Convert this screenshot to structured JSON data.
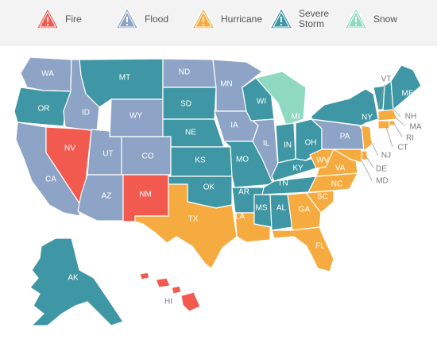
{
  "colors": {
    "fire": "#f25a4f",
    "flood": "#8ea4c6",
    "hurricane": "#f5ab3f",
    "severe_storm": "#3f97a5",
    "snow": "#8ed9bf"
  },
  "legend": [
    {
      "key": "fire",
      "label": "Fire",
      "icon": "warning-triangle-icon"
    },
    {
      "key": "flood",
      "label": "Flood",
      "icon": "warning-triangle-icon"
    },
    {
      "key": "hurricane",
      "label": "Hurricane",
      "icon": "warning-triangle-icon"
    },
    {
      "key": "severe_storm",
      "label": "Severe Storm",
      "icon": "warning-triangle-icon"
    },
    {
      "key": "snow",
      "label": "Snow",
      "icon": "warning-triangle-icon"
    }
  ],
  "states": {
    "WA": "flood",
    "OR": "severe_storm",
    "CA": "flood",
    "NV": "fire",
    "ID": "flood",
    "MT": "severe_storm",
    "WY": "flood",
    "UT": "flood",
    "CO": "flood",
    "AZ": "flood",
    "NM": "fire",
    "ND": "flood",
    "SD": "severe_storm",
    "NE": "severe_storm",
    "KS": "severe_storm",
    "OK": "severe_storm",
    "TX": "hurricane",
    "MN": "flood",
    "IA": "flood",
    "MO": "severe_storm",
    "AR": "severe_storm",
    "LA": "hurricane",
    "WI": "severe_storm",
    "IL": "flood",
    "MI": "snow",
    "IN": "severe_storm",
    "OH": "severe_storm",
    "KY": "severe_storm",
    "TN": "severe_storm",
    "MS": "severe_storm",
    "AL": "severe_storm",
    "GA": "hurricane",
    "FL": "hurricane",
    "SC": "hurricane",
    "NC": "hurricane",
    "VA": "hurricane",
    "WV": "hurricane",
    "PA": "flood",
    "NY": "severe_storm",
    "VT": "severe_storm",
    "NH": "severe_storm",
    "ME": "severe_storm",
    "MA": "hurricane",
    "RI": "hurricane",
    "CT": "hurricane",
    "NJ": "hurricane",
    "DE": "hurricane",
    "MD": "hurricane",
    "AK": "severe_storm",
    "HI": "fire"
  },
  "labels": {
    "WA": "WA",
    "OR": "OR",
    "CA": "CA",
    "NV": "NV",
    "ID": "ID",
    "MT": "MT",
    "WY": "WY",
    "UT": "UT",
    "CO": "CO",
    "AZ": "AZ",
    "NM": "NM",
    "ND": "ND",
    "SD": "SD",
    "NE": "NE",
    "KS": "KS",
    "OK": "OK",
    "TX": "TX",
    "MN": "MN",
    "IA": "IA",
    "MO": "MO",
    "AR": "AR",
    "LA": "LA",
    "WI": "WI",
    "IL": "IL",
    "MI": "MI",
    "IN": "IN",
    "OH": "OH",
    "KY": "KY",
    "TN": "TN",
    "MS": "MS",
    "AL": "AL",
    "GA": "GA",
    "FL": "FL",
    "SC": "SC",
    "NC": "NC",
    "VA": "VA",
    "WV": "WV",
    "PA": "PA",
    "NY": "NY",
    "VT": "VT",
    "NH": "NH",
    "ME": "ME",
    "MA": "MA",
    "RI": "RI",
    "CT": "CT",
    "NJ": "NJ",
    "DE": "DE",
    "MD": "MD",
    "AK": "AK",
    "HI": "HI"
  }
}
